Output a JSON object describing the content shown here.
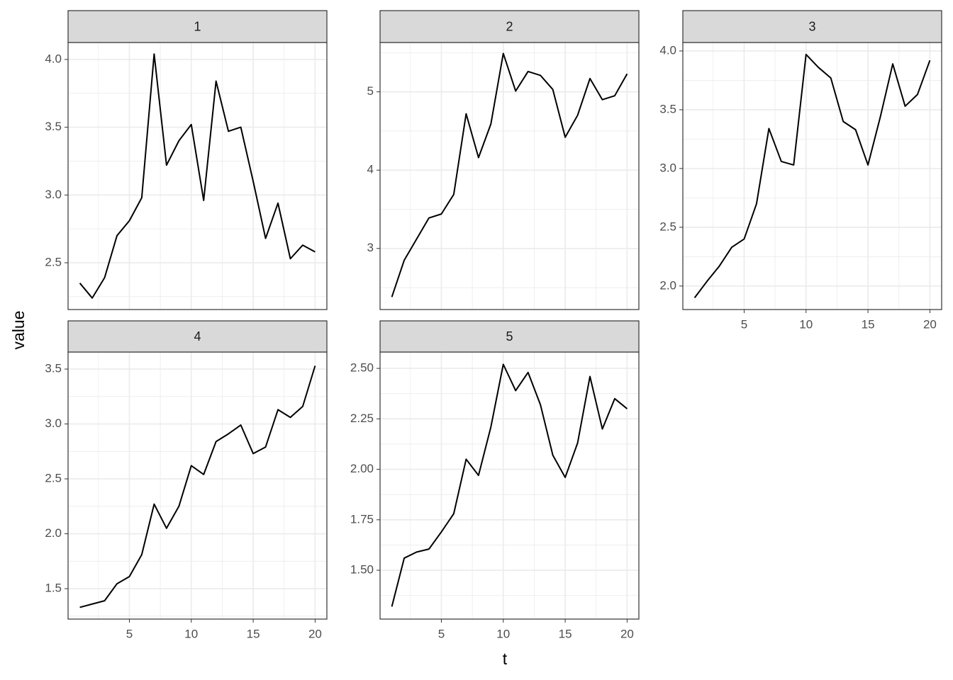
{
  "xlabel": "t",
  "ylabel": "value",
  "chart_data": [
    {
      "type": "line",
      "title": "1",
      "color": "#000000",
      "grid": true,
      "xaxis_labels": false,
      "x": [
        1,
        2,
        3,
        4,
        5,
        6,
        7,
        8,
        9,
        10,
        11,
        12,
        13,
        14,
        15,
        16,
        17,
        18,
        19,
        20
      ],
      "values": [
        2.35,
        2.24,
        2.39,
        2.7,
        2.81,
        2.98,
        4.04,
        3.22,
        3.4,
        3.52,
        2.96,
        3.84,
        3.47,
        3.5,
        3.1,
        2.68,
        2.94,
        2.53,
        2.63,
        2.58
      ],
      "xlim": [
        0.05,
        20.95
      ],
      "xticks": [
        5,
        10,
        15,
        20
      ],
      "ylim": [
        2.155,
        4.125
      ],
      "yticks": [
        {
          "value": 2.5,
          "label": "2.5"
        },
        {
          "value": 3,
          "label": "3.0"
        },
        {
          "value": 3.5,
          "label": "3.5"
        },
        {
          "value": 4,
          "label": "4.0"
        }
      ]
    },
    {
      "type": "line",
      "title": "2",
      "color": "#000000",
      "grid": true,
      "xaxis_labels": false,
      "x": [
        1,
        2,
        3,
        4,
        5,
        6,
        7,
        8,
        9,
        10,
        11,
        12,
        13,
        14,
        15,
        16,
        17,
        18,
        19,
        20
      ],
      "values": [
        2.38,
        2.85,
        3.12,
        3.39,
        3.44,
        3.69,
        4.72,
        4.16,
        4.59,
        5.49,
        5.01,
        5.26,
        5.21,
        5.03,
        4.42,
        4.7,
        5.17,
        4.9,
        4.95,
        5.23
      ],
      "xlim": [
        0.05,
        20.95
      ],
      "xticks": [
        5,
        10,
        15,
        20
      ],
      "ylim": [
        2.22,
        5.63
      ],
      "yticks": [
        3,
        4,
        5
      ]
    },
    {
      "type": "line",
      "title": "3",
      "color": "#000000",
      "grid": true,
      "xaxis_labels": true,
      "x": [
        1,
        2,
        3,
        4,
        5,
        6,
        7,
        8,
        9,
        10,
        11,
        12,
        13,
        14,
        15,
        16,
        17,
        18,
        19,
        20
      ],
      "values": [
        1.9,
        2.04,
        2.17,
        2.33,
        2.4,
        2.7,
        3.34,
        3.06,
        3.03,
        3.97,
        3.86,
        3.77,
        3.4,
        3.33,
        3.03,
        3.44,
        3.89,
        3.53,
        3.63,
        3.92
      ],
      "xlim": [
        0.05,
        20.95
      ],
      "xticks": [
        5,
        10,
        15,
        20
      ],
      "ylim": [
        1.8,
        4.072
      ],
      "yticks": [
        {
          "value": 2,
          "label": "2.0"
        },
        {
          "value": 2.5,
          "label": "2.5"
        },
        {
          "value": 3,
          "label": "3.0"
        },
        {
          "value": 3.5,
          "label": "3.5"
        },
        {
          "value": 4,
          "label": "4.0"
        }
      ]
    },
    {
      "type": "line",
      "title": "4",
      "color": "#000000",
      "grid": true,
      "xaxis_labels": true,
      "x": [
        1,
        2,
        3,
        4,
        5,
        6,
        7,
        8,
        9,
        10,
        11,
        12,
        13,
        14,
        15,
        16,
        17,
        18,
        19,
        20
      ],
      "values": [
        1.33,
        1.36,
        1.39,
        1.545,
        1.61,
        1.81,
        2.27,
        2.05,
        2.25,
        2.62,
        2.54,
        2.84,
        2.91,
        2.99,
        2.73,
        2.79,
        3.13,
        3.06,
        3.16,
        3.53
      ],
      "xlim": [
        0.05,
        20.95
      ],
      "xticks": [
        5,
        10,
        15,
        20
      ],
      "ylim": [
        1.223,
        3.655
      ],
      "yticks": [
        {
          "value": 1.5,
          "label": "1.5"
        },
        {
          "value": 2,
          "label": "2.0"
        },
        {
          "value": 2.5,
          "label": "2.5"
        },
        {
          "value": 3,
          "label": "3.0"
        },
        {
          "value": 3.5,
          "label": "3.5"
        }
      ]
    },
    {
      "type": "line",
      "title": "5",
      "color": "#000000",
      "grid": true,
      "xaxis_labels": true,
      "x": [
        1,
        2,
        3,
        4,
        5,
        6,
        7,
        8,
        9,
        10,
        11,
        12,
        13,
        14,
        15,
        16,
        17,
        18,
        19,
        20
      ],
      "values": [
        1.32,
        1.56,
        1.59,
        1.605,
        1.69,
        1.78,
        2.05,
        1.97,
        2.21,
        2.52,
        2.39,
        2.48,
        2.32,
        2.07,
        1.96,
        2.13,
        2.46,
        2.2,
        2.35,
        2.3
      ],
      "xlim": [
        0.05,
        20.95
      ],
      "xticks": [
        5,
        10,
        15,
        20
      ],
      "ylim": [
        1.258,
        2.581
      ],
      "yticks": [
        {
          "value": 1.5,
          "label": "1.50"
        },
        {
          "value": 1.75,
          "label": "1.75"
        },
        {
          "value": 2,
          "label": "2.00"
        },
        {
          "value": 2.25,
          "label": "2.25"
        },
        {
          "value": 2.5,
          "label": "2.50"
        }
      ]
    }
  ]
}
